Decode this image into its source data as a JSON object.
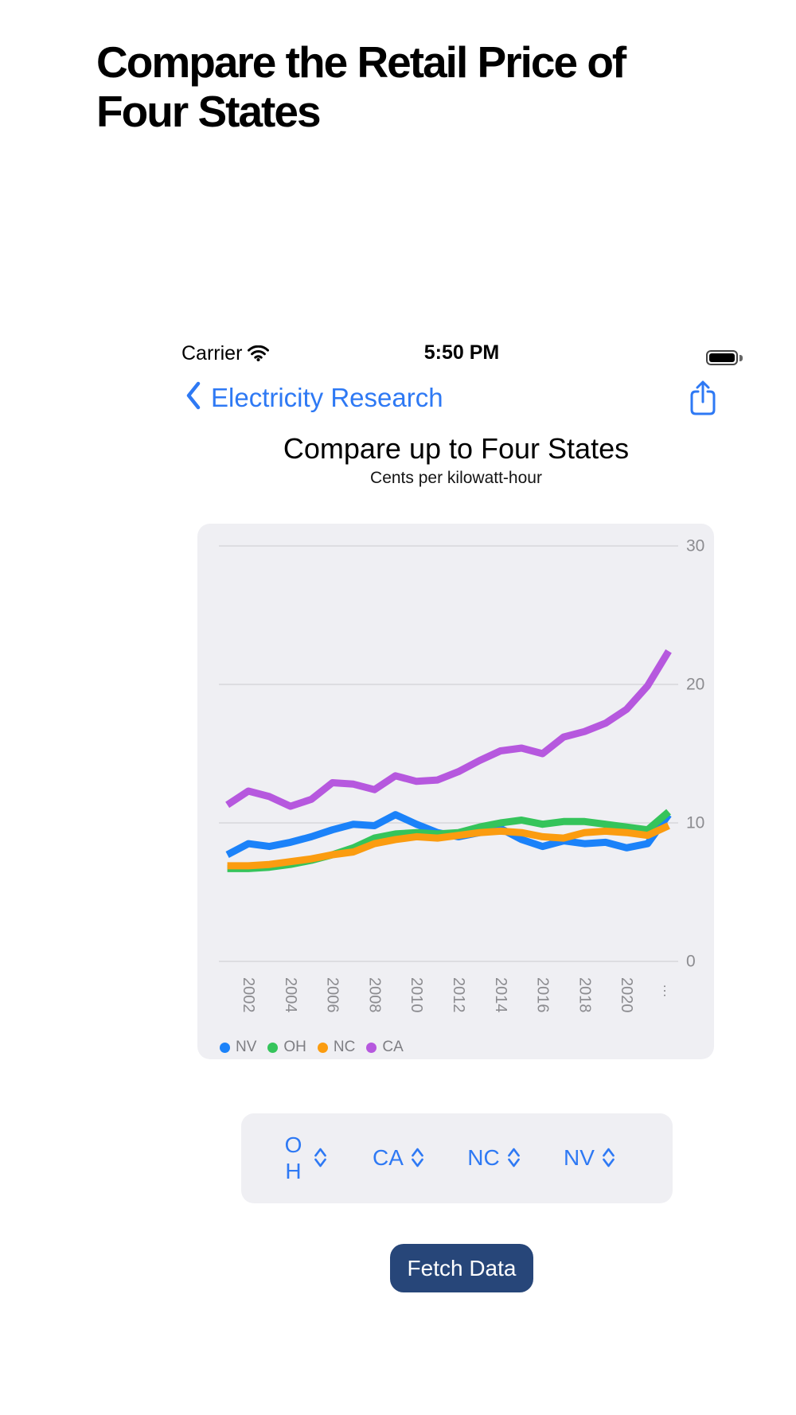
{
  "page": {
    "heading": "Compare the Retail Price of\nFour States"
  },
  "status_bar": {
    "carrier": "Carrier",
    "time": "5:50 PM",
    "battery_level": "full"
  },
  "nav": {
    "back_label": "Electricity Research"
  },
  "chart": {
    "title": "Compare up to Four States",
    "subtitle": "Cents per kilowatt-hour"
  },
  "chart_data": {
    "type": "line",
    "title": "Compare up to Four States",
    "subtitle": "Cents per kilowatt-hour",
    "x": [
      2001,
      2002,
      2003,
      2004,
      2005,
      2006,
      2007,
      2008,
      2009,
      2010,
      2011,
      2012,
      2013,
      2014,
      2015,
      2016,
      2017,
      2018,
      2019,
      2020,
      2021,
      2022
    ],
    "x_tick_labels": [
      "2002",
      "2004",
      "2006",
      "2008",
      "2010",
      "2012",
      "2014",
      "2016",
      "2018",
      "2020"
    ],
    "x_overflow_label": "⋮",
    "ylim": [
      0,
      30
    ],
    "y_ticks": [
      0,
      10,
      20,
      30
    ],
    "y_axis_position": "right",
    "grid": "horizontal",
    "legend_position": "bottom-left",
    "series": [
      {
        "name": "NV",
        "color": "#1b82f9",
        "values": [
          7.7,
          8.5,
          8.3,
          8.6,
          9.0,
          9.5,
          9.9,
          9.8,
          10.6,
          9.9,
          9.3,
          9.0,
          9.3,
          9.6,
          8.8,
          8.3,
          8.7,
          8.5,
          8.6,
          8.2,
          8.5,
          10.6
        ]
      },
      {
        "name": "OH",
        "color": "#35c45b",
        "values": [
          6.7,
          6.7,
          6.8,
          7.0,
          7.3,
          7.7,
          8.2,
          8.9,
          9.2,
          9.3,
          9.2,
          9.3,
          9.7,
          10.0,
          10.2,
          9.9,
          10.1,
          10.1,
          9.9,
          9.7,
          9.5,
          10.8
        ]
      },
      {
        "name": "NC",
        "color": "#fb9c10",
        "values": [
          6.9,
          6.9,
          7.0,
          7.2,
          7.4,
          7.7,
          7.9,
          8.5,
          8.8,
          9.0,
          8.9,
          9.1,
          9.3,
          9.4,
          9.3,
          9.0,
          8.9,
          9.3,
          9.4,
          9.3,
          9.1,
          9.8
        ]
      },
      {
        "name": "CA",
        "color": "#b658de",
        "values": [
          11.3,
          12.3,
          11.9,
          11.2,
          11.7,
          12.9,
          12.8,
          12.4,
          13.4,
          13.0,
          13.1,
          13.7,
          14.5,
          15.2,
          15.4,
          15.0,
          16.2,
          16.6,
          17.2,
          18.2,
          19.9,
          22.4
        ]
      }
    ]
  },
  "pickers": [
    {
      "selected": "OH"
    },
    {
      "selected": "CA"
    },
    {
      "selected": "NC"
    },
    {
      "selected": "NV"
    }
  ],
  "controls": {
    "fetch_label": "Fetch Data"
  },
  "colors": {
    "ui_blue": "#2e79f4",
    "button_navy": "#274679",
    "card_gray": "#efeff3",
    "axis_label_gray": "#8c8c90",
    "gridline": "#d7d7db"
  }
}
